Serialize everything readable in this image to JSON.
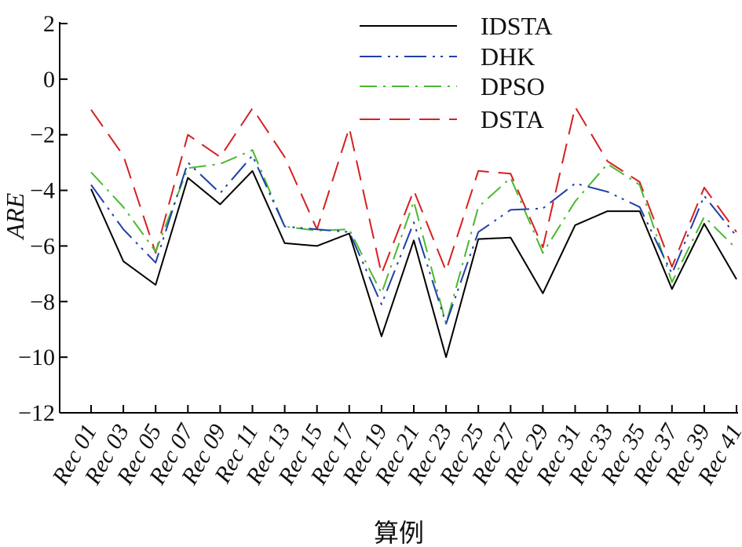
{
  "chart_data": {
    "type": "line",
    "xlabel": "算例",
    "ylabel": "ARE",
    "ylim": [
      -12,
      2
    ],
    "yticks": [
      2,
      0,
      -2,
      -4,
      -6,
      -8,
      -10,
      -12
    ],
    "categories": [
      "Rec 01",
      "Rec 03",
      "Rec 05",
      "Rec 07",
      "Rec 09",
      "Rec 11",
      "Rec 13",
      "Rec 15",
      "Rec 17",
      "Rec 19",
      "Rec 21",
      "Rec 23",
      "Rec 25",
      "Rec 27",
      "Rec 29",
      "Rec 31",
      "Rec 33",
      "Rec 35",
      "Rec 37",
      "Rec 39",
      "Rec 41"
    ],
    "grid": false,
    "legend_position": "top-right",
    "series": [
      {
        "name": "IDSTA",
        "color": "#000000",
        "dash": "solid",
        "values": [
          -3.95,
          -6.55,
          -7.4,
          -3.55,
          -4.5,
          -3.3,
          -5.9,
          -6.0,
          -5.55,
          -9.25,
          -5.8,
          -10.0,
          -5.75,
          -5.7,
          -7.7,
          -5.25,
          -4.75,
          -4.75,
          -7.55,
          -5.2,
          -7.2
        ]
      },
      {
        "name": "DHK",
        "color": "#1f3fa8",
        "dash": "long-dash-dot-dot",
        "values": [
          -3.8,
          -5.4,
          -6.6,
          -3.0,
          -4.1,
          -2.75,
          -5.3,
          -5.4,
          -5.5,
          -8.1,
          -5.15,
          -8.8,
          -5.5,
          -4.7,
          -4.65,
          -3.75,
          -4.05,
          -4.6,
          -7.0,
          -4.2,
          -5.65
        ]
      },
      {
        "name": "DPSO",
        "color": "#4bb830",
        "dash": "dash-dot",
        "values": [
          -3.35,
          -4.6,
          -6.2,
          -3.2,
          -3.05,
          -2.55,
          -5.3,
          -5.45,
          -5.4,
          -7.7,
          -4.4,
          -8.8,
          -4.6,
          -3.55,
          -6.25,
          -4.4,
          -3.05,
          -3.8,
          -7.3,
          -4.95,
          -6.1
        ]
      },
      {
        "name": "DSTA",
        "color": "#d62020",
        "dash": "dashed",
        "values": [
          -1.1,
          -2.75,
          -6.25,
          -2.0,
          -2.8,
          -1.05,
          -2.8,
          -5.4,
          -1.75,
          -7.0,
          -4.0,
          -6.9,
          -3.3,
          -3.4,
          -6.05,
          -1.0,
          -2.95,
          -3.7,
          -6.75,
          -3.9,
          -5.5
        ]
      }
    ]
  }
}
